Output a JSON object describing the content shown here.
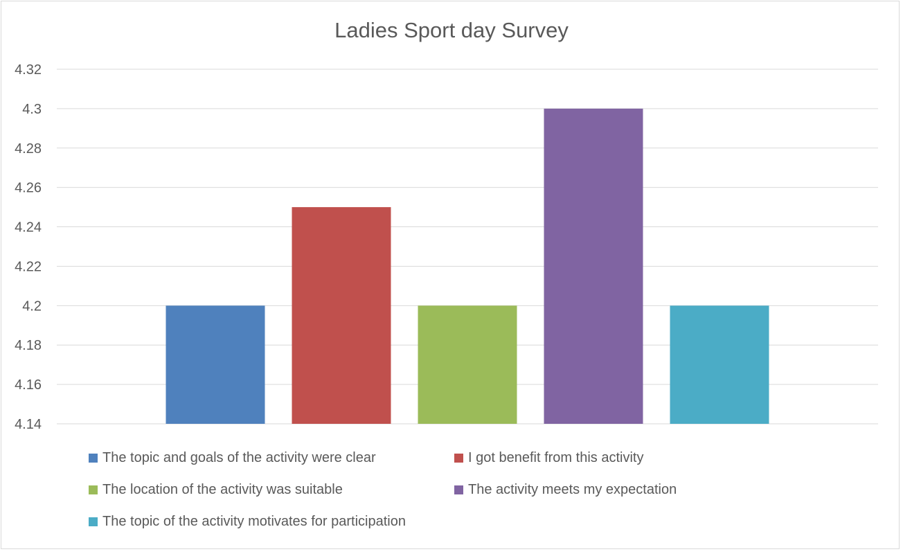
{
  "chart_data": {
    "type": "bar",
    "title": "Ladies Sport day Survey",
    "xlabel": "",
    "ylabel": "",
    "ylim": [
      4.14,
      4.32
    ],
    "yticks": [
      "4.14",
      "4.16",
      "4.18",
      "4.2",
      "4.22",
      "4.24",
      "4.26",
      "4.28",
      "4.3",
      "4.32"
    ],
    "grid": true,
    "legend_position": "bottom",
    "categories": [
      ""
    ],
    "series": [
      {
        "name": "The topic and goals of the activity were clear",
        "values": [
          4.2
        ],
        "color": "#4f81bd"
      },
      {
        "name": "I got benefit from this activity",
        "values": [
          4.25
        ],
        "color": "#c0504d"
      },
      {
        "name": "The location of the activity was suitable",
        "values": [
          4.2
        ],
        "color": "#9bbb59"
      },
      {
        "name": "The activity meets my expectation",
        "values": [
          4.3
        ],
        "color": "#8064a2"
      },
      {
        "name": "The topic of the activity motivates for participation",
        "values": [
          4.2
        ],
        "color": "#4bacc6"
      }
    ]
  }
}
